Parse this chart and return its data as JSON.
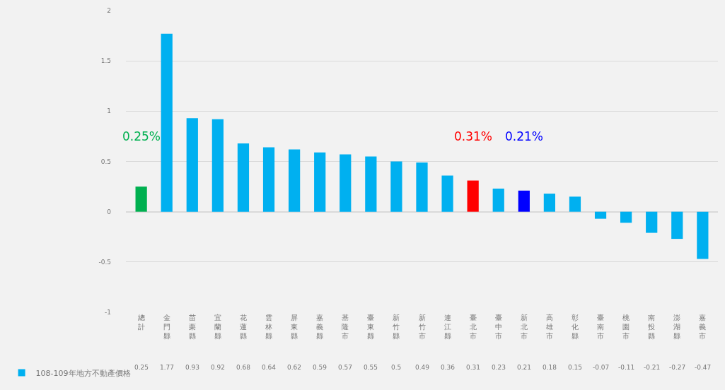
{
  "chart_data": {
    "type": "bar",
    "categories": [
      "總計",
      "金門縣",
      "苗栗縣",
      "宜蘭縣",
      "花蓮縣",
      "雲林縣",
      "屏東縣",
      "嘉義縣",
      "基隆市",
      "臺東縣",
      "新竹縣",
      "新竹市",
      "連江縣",
      "臺北市",
      "臺中市",
      "新北市",
      "高雄市",
      "彰化縣",
      "臺南市",
      "桃園市",
      "南投縣",
      "澎湖縣",
      "嘉義市"
    ],
    "series": [
      {
        "name": "108-109年地方不動產價格",
        "color": "#00b0f0",
        "colors": [
          "#00b050",
          "#00b0f0",
          "#00b0f0",
          "#00b0f0",
          "#00b0f0",
          "#00b0f0",
          "#00b0f0",
          "#00b0f0",
          "#00b0f0",
          "#00b0f0",
          "#00b0f0",
          "#00b0f0",
          "#00b0f0",
          "#ff0000",
          "#00b0f0",
          "#0000ff",
          "#00b0f0",
          "#00b0f0",
          "#00b0f0",
          "#00b0f0",
          "#00b0f0",
          "#00b0f0",
          "#00b0f0"
        ],
        "values": [
          0.25,
          1.77,
          0.93,
          0.92,
          0.68,
          0.64,
          0.62,
          0.59,
          0.57,
          0.55,
          0.5,
          0.49,
          0.36,
          0.31,
          0.23,
          0.21,
          0.18,
          0.15,
          -0.07,
          -0.11,
          -0.21,
          -0.27,
          -0.47
        ]
      }
    ],
    "ylim": [
      -1,
      2
    ],
    "yticks": [
      -1,
      -0.5,
      0,
      0.5,
      1,
      1.5,
      2
    ],
    "grid": "y",
    "legend": "bottom left",
    "data_labels": true,
    "annotations": [
      "0.25%",
      "0.31%",
      "0.21%"
    ]
  }
}
